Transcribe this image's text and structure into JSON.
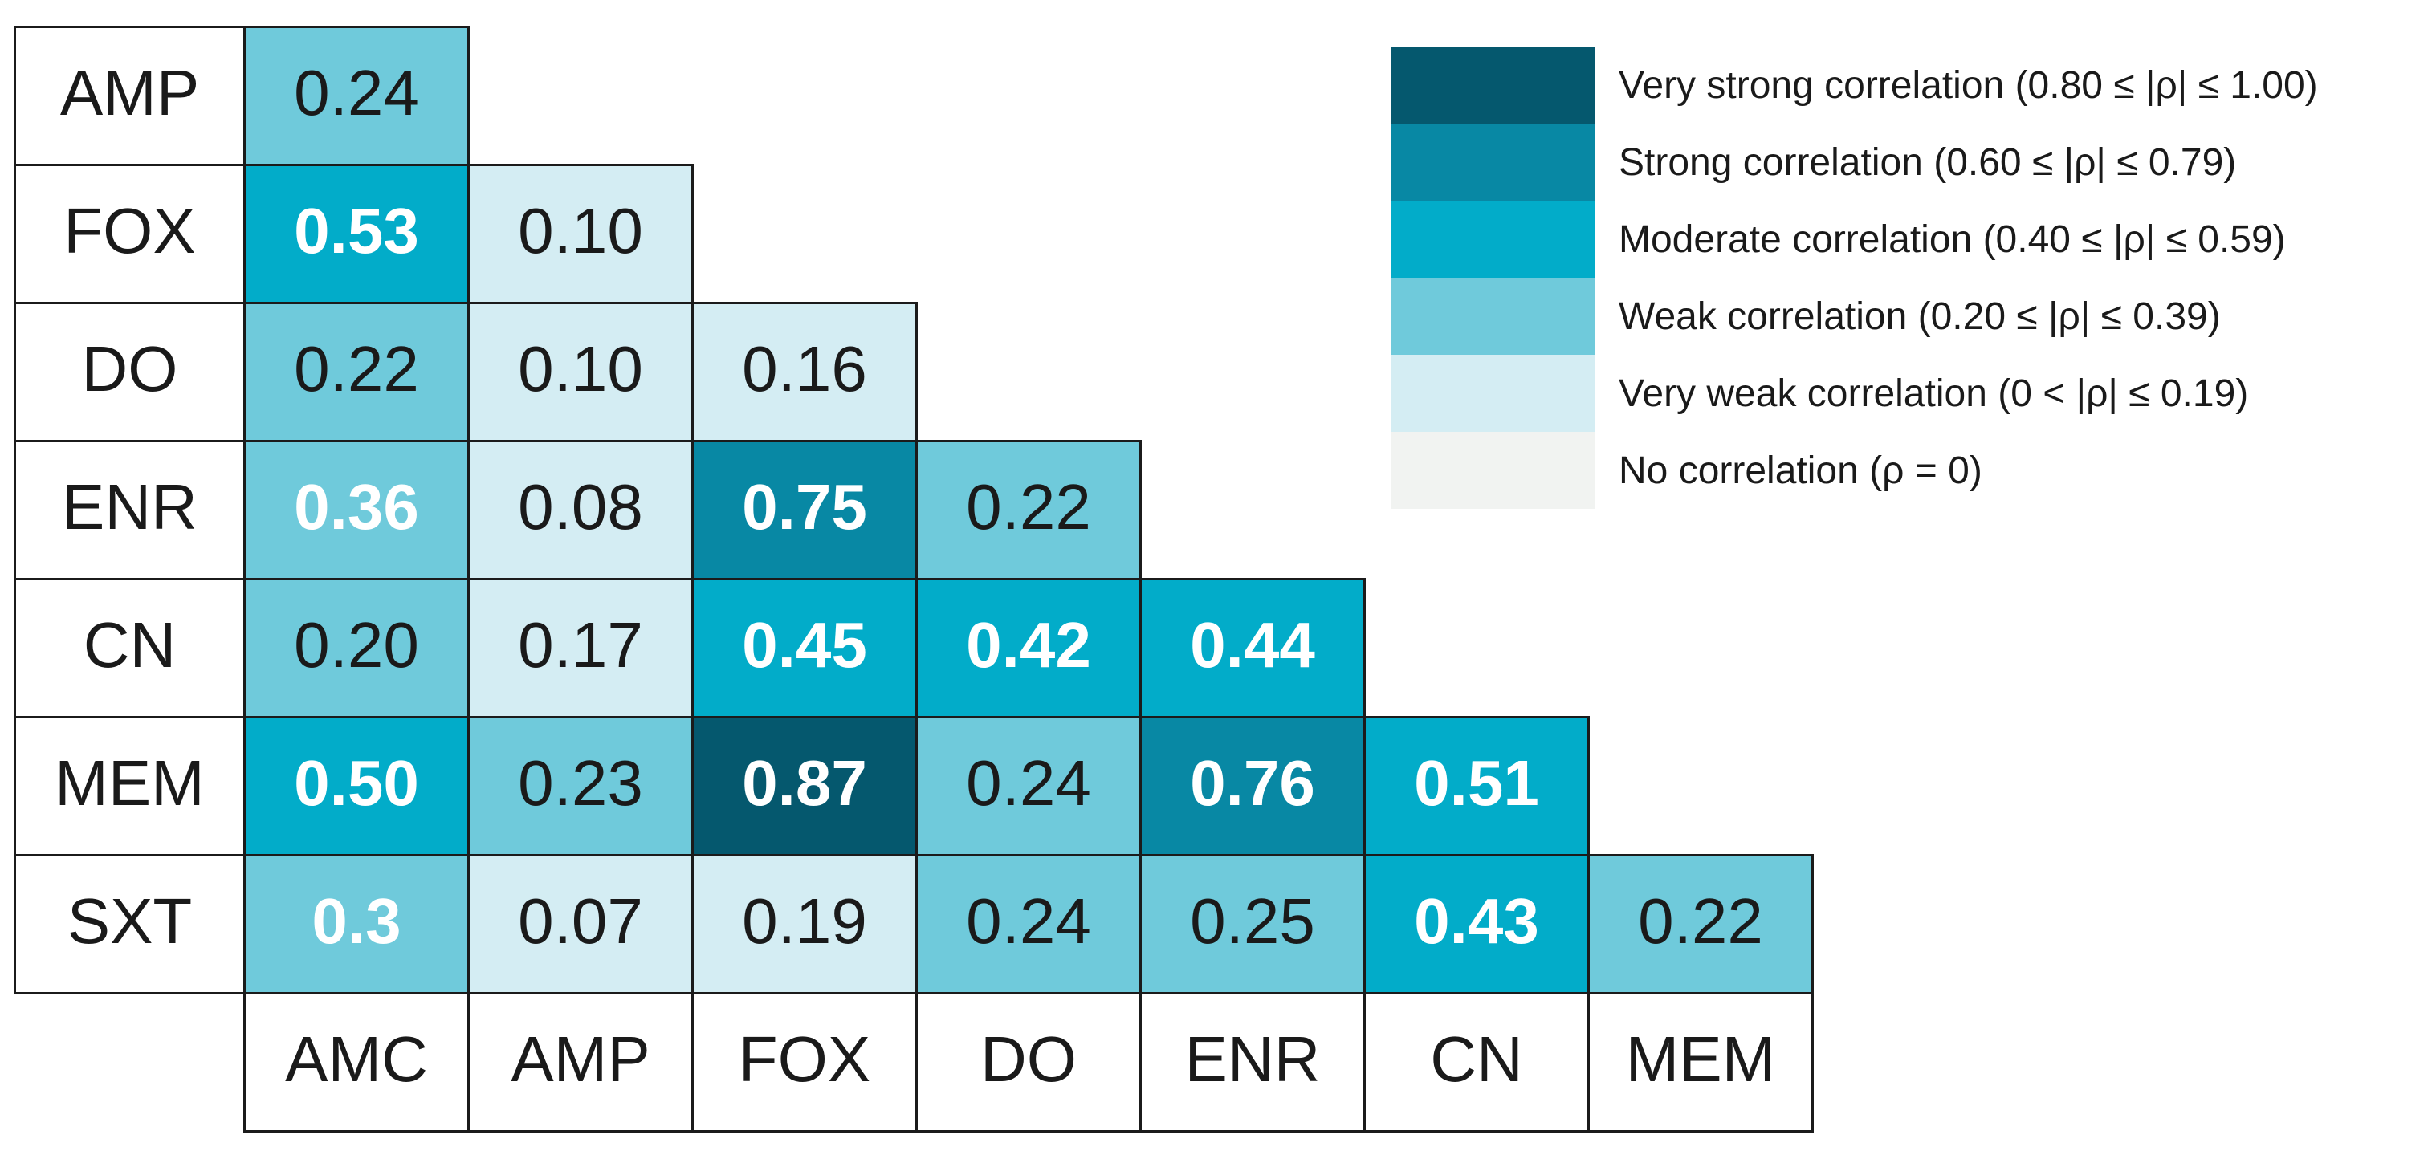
{
  "figure": {
    "background": "#ffffff",
    "border_color": "#1b1b1b"
  },
  "band_colors": {
    "very_strong": "#05586e",
    "strong": "#0888a4",
    "moderate": "#02acc9",
    "weak": "#6fcadb",
    "very_weak": "#d4edf3",
    "none": "#f1f3f1"
  },
  "matrix": {
    "col_labels": [
      "AMC",
      "AMP",
      "FOX",
      "DO",
      "ENR",
      "CN",
      "MEM"
    ],
    "rows": [
      {
        "label": "AMP",
        "cells": [
          {
            "value": "0.24",
            "band": "weak",
            "bg": "#6fcadb",
            "text_color": "#1a1a1a",
            "weight": "400"
          }
        ]
      },
      {
        "label": "FOX",
        "cells": [
          {
            "value": "0.53",
            "band": "moderate",
            "bg": "#02acc9",
            "text_color": "#ffffff",
            "weight": "700"
          },
          {
            "value": "0.10",
            "band": "very_weak",
            "bg": "#d4edf3",
            "text_color": "#1a1a1a",
            "weight": "400"
          }
        ]
      },
      {
        "label": "DO",
        "cells": [
          {
            "value": "0.22",
            "band": "weak",
            "bg": "#6fcadb",
            "text_color": "#1a1a1a",
            "weight": "400"
          },
          {
            "value": "0.10",
            "band": "very_weak",
            "bg": "#d4edf3",
            "text_color": "#1a1a1a",
            "weight": "400"
          },
          {
            "value": "0.16",
            "band": "very_weak",
            "bg": "#d4edf3",
            "text_color": "#1a1a1a",
            "weight": "400"
          }
        ]
      },
      {
        "label": "ENR",
        "cells": [
          {
            "value": "0.36",
            "band": "weak",
            "bg": "#6fcadb",
            "text_color": "#ffffff",
            "weight": "700"
          },
          {
            "value": "0.08",
            "band": "very_weak",
            "bg": "#d4edf3",
            "text_color": "#1a1a1a",
            "weight": "400"
          },
          {
            "value": "0.75",
            "band": "strong",
            "bg": "#0888a4",
            "text_color": "#ffffff",
            "weight": "700"
          },
          {
            "value": "0.22",
            "band": "weak",
            "bg": "#6fcadb",
            "text_color": "#1a1a1a",
            "weight": "400"
          }
        ]
      },
      {
        "label": "CN",
        "cells": [
          {
            "value": "0.20",
            "band": "weak",
            "bg": "#6fcadb",
            "text_color": "#1a1a1a",
            "weight": "400"
          },
          {
            "value": "0.17",
            "band": "very_weak",
            "bg": "#d4edf3",
            "text_color": "#1a1a1a",
            "weight": "400"
          },
          {
            "value": "0.45",
            "band": "moderate",
            "bg": "#02acc9",
            "text_color": "#ffffff",
            "weight": "700"
          },
          {
            "value": "0.42",
            "band": "moderate",
            "bg": "#02acc9",
            "text_color": "#ffffff",
            "weight": "700"
          },
          {
            "value": "0.44",
            "band": "moderate",
            "bg": "#02acc9",
            "text_color": "#ffffff",
            "weight": "700"
          }
        ]
      },
      {
        "label": "MEM",
        "cells": [
          {
            "value": "0.50",
            "band": "moderate",
            "bg": "#02acc9",
            "text_color": "#ffffff",
            "weight": "700"
          },
          {
            "value": "0.23",
            "band": "weak",
            "bg": "#6fcadb",
            "text_color": "#1a1a1a",
            "weight": "400"
          },
          {
            "value": "0.87",
            "band": "very_strong",
            "bg": "#05586e",
            "text_color": "#ffffff",
            "weight": "700"
          },
          {
            "value": "0.24",
            "band": "weak",
            "bg": "#6fcadb",
            "text_color": "#1a1a1a",
            "weight": "400"
          },
          {
            "value": "0.76",
            "band": "strong",
            "bg": "#0888a4",
            "text_color": "#ffffff",
            "weight": "700"
          },
          {
            "value": "0.51",
            "band": "moderate",
            "bg": "#02acc9",
            "text_color": "#ffffff",
            "weight": "700"
          }
        ]
      },
      {
        "label": "SXT",
        "cells": [
          {
            "value": "0.3",
            "band": "weak",
            "bg": "#6fcadb",
            "text_color": "#ffffff",
            "weight": "700"
          },
          {
            "value": "0.07",
            "band": "very_weak",
            "bg": "#d4edf3",
            "text_color": "#1a1a1a",
            "weight": "400"
          },
          {
            "value": "0.19",
            "band": "very_weak",
            "bg": "#d4edf3",
            "text_color": "#1a1a1a",
            "weight": "400"
          },
          {
            "value": "0.24",
            "band": "weak",
            "bg": "#6fcadb",
            "text_color": "#1a1a1a",
            "weight": "400"
          },
          {
            "value": "0.25",
            "band": "weak",
            "bg": "#6fcadb",
            "text_color": "#1a1a1a",
            "weight": "400"
          },
          {
            "value": "0.43",
            "band": "moderate",
            "bg": "#02acc9",
            "text_color": "#ffffff",
            "weight": "700"
          },
          {
            "value": "0.22",
            "band": "weak",
            "bg": "#6fcadb",
            "text_color": "#1a1a1a",
            "weight": "400"
          }
        ]
      }
    ]
  },
  "legend": {
    "items": [
      {
        "label": "Very strong correlation (0.80 ≤ |ρ| ≤ 1.00)",
        "color": "#05586e"
      },
      {
        "label": "Strong correlation (0.60 ≤ |ρ| ≤ 0.79)",
        "color": "#0888a4"
      },
      {
        "label": "Moderate correlation (0.40 ≤ |ρ| ≤ 0.59)",
        "color": "#02acc9"
      },
      {
        "label": "Weak correlation (0.20 ≤ |ρ| ≤ 0.39)",
        "color": "#6fcadb"
      },
      {
        "label": "Very weak correlation (0 < |ρ| ≤ 0.19)",
        "color": "#d4edf3"
      },
      {
        "label": "No correlation (ρ = 0)",
        "color": "#f1f3f1"
      }
    ]
  },
  "chart_data": {
    "type": "heatmap",
    "title": "",
    "rows": [
      "AMP",
      "FOX",
      "DO",
      "ENR",
      "CN",
      "MEM",
      "SXT"
    ],
    "cols": [
      "AMC",
      "AMP",
      "FOX",
      "DO",
      "ENR",
      "CN",
      "MEM"
    ],
    "values": [
      [
        0.24
      ],
      [
        0.53,
        0.1
      ],
      [
        0.22,
        0.1,
        0.16
      ],
      [
        0.36,
        0.08,
        0.75,
        0.22
      ],
      [
        0.2,
        0.17,
        0.45,
        0.42,
        0.44
      ],
      [
        0.5,
        0.23,
        0.87,
        0.24,
        0.76,
        0.51
      ],
      [
        0.3,
        0.07,
        0.19,
        0.24,
        0.25,
        0.43,
        0.22
      ]
    ],
    "shape": "lower-triangular",
    "legend_position": "top-right",
    "legend_bands": [
      {
        "name": "very_strong",
        "range": "0.80-1.00",
        "color": "#05586e"
      },
      {
        "name": "strong",
        "range": "0.60-0.79",
        "color": "#0888a4"
      },
      {
        "name": "moderate",
        "range": "0.40-0.59",
        "color": "#02acc9"
      },
      {
        "name": "weak",
        "range": "0.20-0.39",
        "color": "#6fcadb"
      },
      {
        "name": "very_weak",
        "range": "0.01-0.19",
        "color": "#d4edf3"
      },
      {
        "name": "none",
        "range": "0",
        "color": "#f1f3f1"
      }
    ]
  }
}
